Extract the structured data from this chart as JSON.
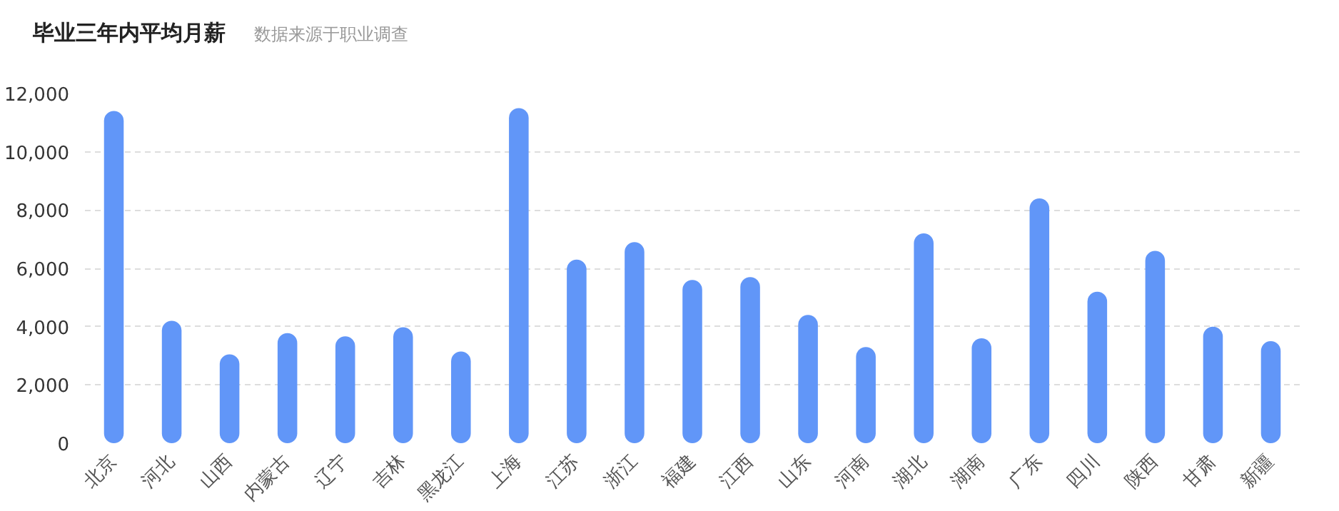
{
  "chart_data": {
    "type": "bar",
    "title": "毕业三年内平均月薪",
    "subtitle": "数据来源于职业调查",
    "categories": [
      "北京",
      "河北",
      "山西",
      "内蒙古",
      "辽宁",
      "吉林",
      "黑龙江",
      "上海",
      "江苏",
      "浙江",
      "福建",
      "江西",
      "山东",
      "河南",
      "湖北",
      "湖南",
      "广东",
      "四川",
      "陕西",
      "甘肃",
      "新疆"
    ],
    "values": [
      11400,
      4200,
      3050,
      3780,
      3670,
      3980,
      3150,
      11500,
      6300,
      6900,
      5600,
      5700,
      4400,
      3300,
      7200,
      3600,
      8400,
      5200,
      6600,
      4000,
      3500
    ],
    "color": "#6196f8",
    "ylim": [
      0,
      12000
    ],
    "yticks": [
      {
        "value": 0,
        "label": "0"
      },
      {
        "value": 2000,
        "label": "2,000"
      },
      {
        "value": 4000,
        "label": "4,000"
      },
      {
        "value": 6000,
        "label": "6,000"
      },
      {
        "value": 8000,
        "label": "8,000"
      },
      {
        "value": 10000,
        "label": "10,000"
      },
      {
        "value": 12000,
        "label": "12,000"
      }
    ],
    "grid": "y"
  }
}
